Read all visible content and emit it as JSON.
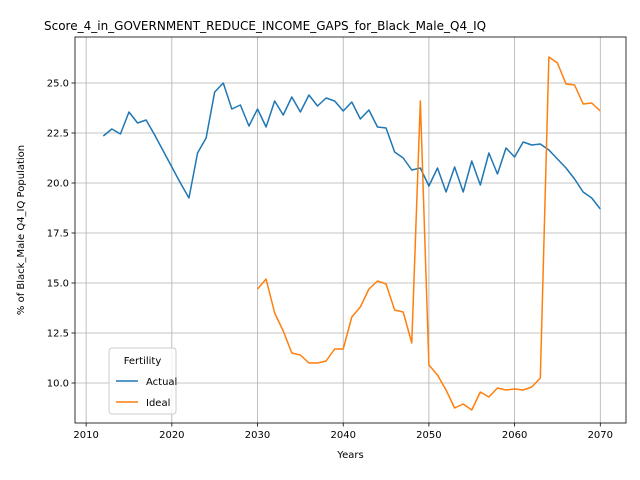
{
  "chart_data": {
    "type": "line",
    "title": "Score_4_in_GOVERNMENT_REDUCE_INCOME_GAPS_for_Black_Male_Q4_IQ",
    "xlabel": "Years",
    "ylabel": "% of Black_Male Q4_IQ Population",
    "xlim": [
      2008.7,
      2073.0
    ],
    "ylim": [
      8.0,
      27.3
    ],
    "xticks": [
      "2010",
      "2020",
      "2030",
      "2040",
      "2050",
      "2060",
      "2070"
    ],
    "yticks": [
      "10.0",
      "12.5",
      "15.0",
      "17.5",
      "20.0",
      "22.5",
      "25.0"
    ],
    "grid": true,
    "legend": {
      "title": "Fertility",
      "position": "lower-left"
    },
    "series": [
      {
        "name": "Actual",
        "color": "#1f77b4",
        "x": [
          2012,
          2013,
          2014,
          2015,
          2016,
          2017,
          2018,
          2019,
          2020,
          2021,
          2022,
          2023,
          2024,
          2025,
          2026,
          2027,
          2028,
          2029,
          2030,
          2031,
          2032,
          2033,
          2034,
          2035,
          2036,
          2037,
          2038,
          2039,
          2040,
          2041,
          2042,
          2043,
          2044,
          2045,
          2046,
          2047,
          2048,
          2049,
          2050,
          2051,
          2052,
          2053,
          2054,
          2055,
          2056,
          2057,
          2058,
          2059,
          2060,
          2061,
          2062,
          2063,
          2064,
          2065,
          2066,
          2067,
          2068,
          2069,
          2070
        ],
        "y": [
          22.35,
          22.7,
          22.45,
          23.55,
          23.0,
          23.15,
          22.4,
          21.6,
          20.8,
          20.0,
          19.25,
          21.5,
          22.25,
          24.55,
          25.0,
          23.7,
          23.9,
          22.85,
          23.7,
          22.8,
          24.1,
          23.4,
          24.3,
          23.55,
          24.4,
          23.85,
          24.25,
          24.1,
          23.6,
          24.05,
          23.2,
          23.65,
          22.8,
          22.75,
          21.55,
          21.25,
          20.65,
          20.75,
          19.85,
          20.75,
          19.55,
          20.8,
          19.55,
          21.1,
          19.9,
          21.5,
          20.45,
          21.75,
          21.3,
          22.05,
          21.9,
          21.95,
          21.65,
          21.2,
          20.75,
          20.2,
          19.55,
          19.25,
          18.7
        ]
      },
      {
        "name": "Ideal",
        "color": "#ff7f0e",
        "x": [
          2030,
          2031,
          2032,
          2033,
          2034,
          2035,
          2036,
          2037,
          2038,
          2039,
          2040,
          2041,
          2042,
          2043,
          2044,
          2045,
          2046,
          2047,
          2048,
          2049,
          2050,
          2051,
          2052,
          2053,
          2054,
          2055,
          2056,
          2057,
          2058,
          2059,
          2060,
          2061,
          2062,
          2063,
          2064,
          2065,
          2066,
          2067,
          2068,
          2069,
          2070
        ],
        "y": [
          14.7,
          15.2,
          13.5,
          12.6,
          11.5,
          11.4,
          11.0,
          11.0,
          11.1,
          11.7,
          11.7,
          13.3,
          13.8,
          14.7,
          15.1,
          14.95,
          13.65,
          13.55,
          12.0,
          24.1,
          10.9,
          10.4,
          9.65,
          8.75,
          8.95,
          8.65,
          9.55,
          9.3,
          9.75,
          9.65,
          9.7,
          9.65,
          9.8,
          10.25,
          26.3,
          26.0,
          24.95,
          24.9,
          23.95,
          24.0,
          23.6
        ]
      }
    ]
  }
}
